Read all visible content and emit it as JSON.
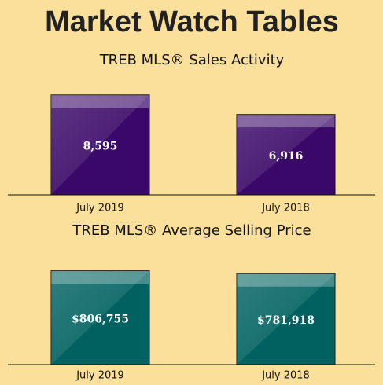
{
  "title": "Market Watch Tables",
  "chart_data": [
    {
      "type": "bar",
      "title": "TREB MLS® Sales Activity",
      "categories": [
        "July 2019",
        "July 2018"
      ],
      "values": [
        8595,
        6916
      ],
      "value_labels": [
        "8,595",
        "6,916"
      ],
      "color": "#3a0868",
      "ylim": [
        0,
        10000
      ]
    },
    {
      "type": "bar",
      "title": "TREB MLS® Average Selling Price",
      "categories": [
        "July 2019",
        "July 2018"
      ],
      "values": [
        806755,
        781918
      ],
      "value_labels": [
        "$806,755",
        "$781,918"
      ],
      "color": "#006260",
      "ylim": [
        0,
        1000000
      ]
    }
  ]
}
